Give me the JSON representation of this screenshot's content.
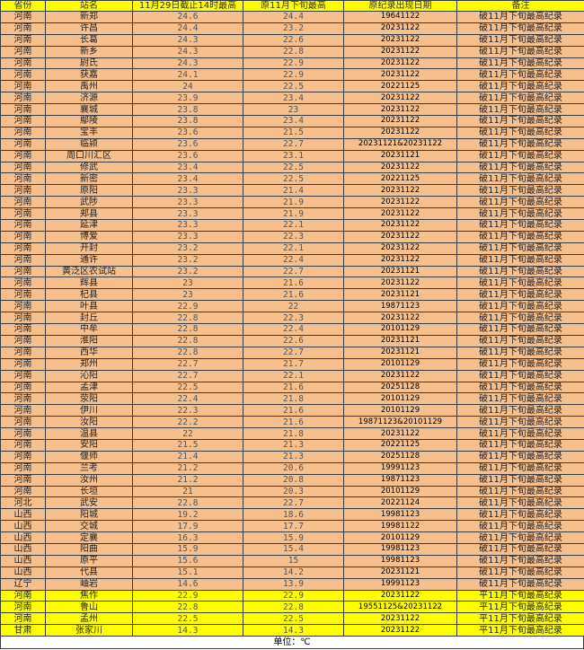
{
  "table": {
    "headers": [
      "省份",
      "站名",
      "11月29日截止14时最高",
      "原11月下旬最高",
      "原纪录出现日期",
      "备注"
    ],
    "rows": [
      [
        "河南",
        "新郑",
        "24.6",
        "24.4",
        "19641122",
        "破11月下旬最高纪录"
      ],
      [
        "河南",
        "许昌",
        "24.4",
        "23.2",
        "20231122",
        "破11月下旬最高纪录"
      ],
      [
        "河南",
        "长葛",
        "24.3",
        "22.6",
        "20231122",
        "破11月下旬最高纪录"
      ],
      [
        "河南",
        "新乡",
        "24.3",
        "22.8",
        "20231122",
        "破11月下旬最高纪录"
      ],
      [
        "河南",
        "尉氏",
        "24.3",
        "22.9",
        "20231122",
        "破11月下旬最高纪录"
      ],
      [
        "河南",
        "获嘉",
        "24.1",
        "22.9",
        "20231122",
        "破11月下旬最高纪录"
      ],
      [
        "河南",
        "禹州",
        "24",
        "22.5",
        "20221125",
        "破11月下旬最高纪录"
      ],
      [
        "河南",
        "济源",
        "23.9",
        "23.4",
        "20231122",
        "破11月下旬最高纪录"
      ],
      [
        "河南",
        "襄城",
        "23.8",
        "23",
        "20231122",
        "破11月下旬最高纪录"
      ],
      [
        "河南",
        "鄢陵",
        "23.8",
        "23.4",
        "20231122",
        "破11月下旬最高纪录"
      ],
      [
        "河南",
        "宝丰",
        "23.6",
        "21.5",
        "20231122",
        "破11月下旬最高纪录"
      ],
      [
        "河南",
        "临颍",
        "23.6",
        "22.7",
        "20231121&20231122",
        "破11月下旬最高纪录"
      ],
      [
        "河南",
        "周口川汇区",
        "23.6",
        "23.1",
        "20231121",
        "破11月下旬最高纪录"
      ],
      [
        "河南",
        "修武",
        "23.4",
        "22.5",
        "20231122",
        "破11月下旬最高纪录"
      ],
      [
        "河南",
        "新密",
        "23.4",
        "22.5",
        "20221125",
        "破11月下旬最高纪录"
      ],
      [
        "河南",
        "原阳",
        "23.3",
        "21.4",
        "20231122",
        "破11月下旬最高纪录"
      ],
      [
        "河南",
        "武陟",
        "23.3",
        "21.9",
        "20231122",
        "破11月下旬最高纪录"
      ],
      [
        "河南",
        "郏县",
        "23.3",
        "21.9",
        "20231122",
        "破11月下旬最高纪录"
      ],
      [
        "河南",
        "延津",
        "23.3",
        "22.1",
        "20231122",
        "破11月下旬最高纪录"
      ],
      [
        "河南",
        "博爱",
        "23.3",
        "22.3",
        "20231122",
        "破11月下旬最高纪录"
      ],
      [
        "河南",
        "开封",
        "23.2",
        "22.1",
        "20231122",
        "破11月下旬最高纪录"
      ],
      [
        "河南",
        "通许",
        "23.2",
        "22.4",
        "20231122",
        "破11月下旬最高纪录"
      ],
      [
        "河南",
        "黄泛区农试站",
        "23.2",
        "22.7",
        "20231121",
        "破11月下旬最高纪录"
      ],
      [
        "河南",
        "辉县",
        "23",
        "21.6",
        "20231122",
        "破11月下旬最高纪录"
      ],
      [
        "河南",
        "杞县",
        "23",
        "21.6",
        "20231121",
        "破11月下旬最高纪录"
      ],
      [
        "河南",
        "叶县",
        "22.9",
        "22",
        "19871123",
        "破11月下旬最高纪录"
      ],
      [
        "河南",
        "封丘",
        "22.8",
        "22.3",
        "20231122",
        "破11月下旬最高纪录"
      ],
      [
        "河南",
        "中牟",
        "22.8",
        "22.4",
        "20101129",
        "破11月下旬最高纪录"
      ],
      [
        "河南",
        "淮阳",
        "22.8",
        "22.6",
        "20231121",
        "破11月下旬最高纪录"
      ],
      [
        "河南",
        "西华",
        "22.8",
        "22.7",
        "20231121",
        "破11月下旬最高纪录"
      ],
      [
        "河南",
        "郑州",
        "22.7",
        "21.7",
        "20101129",
        "破11月下旬最高纪录"
      ],
      [
        "河南",
        "沁阳",
        "22.7",
        "22.1",
        "20231122",
        "破11月下旬最高纪录"
      ],
      [
        "河南",
        "孟津",
        "22.5",
        "21.6",
        "20251128",
        "破11月下旬最高纪录"
      ],
      [
        "河南",
        "荥阳",
        "22.4",
        "21.8",
        "20101129",
        "破11月下旬最高纪录"
      ],
      [
        "河南",
        "伊川",
        "22.3",
        "21.6",
        "20101129",
        "破11月下旬最高纪录"
      ],
      [
        "河南",
        "汝阳",
        "22.2",
        "21.6",
        "19871123&20101129",
        "破11月下旬最高纪录"
      ],
      [
        "河南",
        "温县",
        "22",
        "21.8",
        "20231122",
        "破11月下旬最高纪录"
      ],
      [
        "河南",
        "安阳",
        "21.5",
        "21.3",
        "20221125",
        "破11月下旬最高纪录"
      ],
      [
        "河南",
        "偃师",
        "21.4",
        "21.3",
        "20251128",
        "破11月下旬最高纪录"
      ],
      [
        "河南",
        "兰考",
        "21.2",
        "20.6",
        "19991123",
        "破11月下旬最高纪录"
      ],
      [
        "河南",
        "汝州",
        "21.2",
        "20.8",
        "19871123",
        "破11月下旬最高纪录"
      ],
      [
        "河南",
        "长垣",
        "21",
        "20.3",
        "20101129",
        "破11月下旬最高纪录"
      ],
      [
        "河北",
        "武安",
        "22.8",
        "22.7",
        "20221124",
        "破11月下旬最高纪录"
      ],
      [
        "山西",
        "阳城",
        "19.2",
        "18.6",
        "19981123",
        "破11月下旬最高纪录"
      ],
      [
        "山西",
        "交城",
        "17.9",
        "17.7",
        "19981122",
        "破11月下旬最高纪录"
      ],
      [
        "山西",
        "定襄",
        "16.3",
        "15.9",
        "20101129",
        "破11月下旬最高纪录"
      ],
      [
        "山西",
        "阳曲",
        "15.9",
        "15.4",
        "19981123",
        "破11月下旬最高纪录"
      ],
      [
        "山西",
        "原平",
        "15.6",
        "15",
        "19981123",
        "破11月下旬最高纪录"
      ],
      [
        "山西",
        "代县",
        "15.1",
        "14.2",
        "20231121",
        "破11月下旬最高纪录"
      ],
      [
        "辽宁",
        "岫岩",
        "14.6",
        "13.9",
        "19991123",
        "破11月下旬最高纪录"
      ],
      [
        "河南",
        "焦作",
        "22.9",
        "22.9",
        "20231122",
        "平11月下旬最高纪录"
      ],
      [
        "河南",
        "鲁山",
        "22.8",
        "22.8",
        "19551125&20231122",
        "平11月下旬最高纪录"
      ],
      [
        "河南",
        "孟州",
        "22.5",
        "22.5",
        "20231122",
        "平11月下旬最高纪录"
      ],
      [
        "甘肃",
        "张家川",
        "14.3",
        "14.3",
        "20231122",
        "平11月下旬最高纪录"
      ]
    ],
    "unit_note": "单位：℃"
  },
  "colors": {
    "header": "#ffff00",
    "broken_record_row": "#f6bf8e",
    "tied_record_row": "#ffff00"
  }
}
